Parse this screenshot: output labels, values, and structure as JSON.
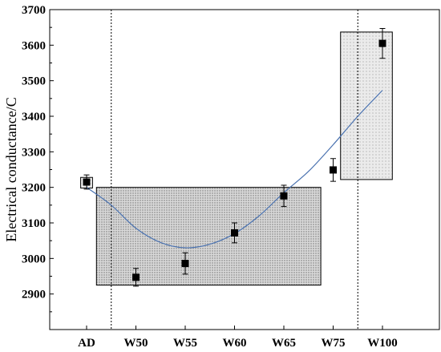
{
  "chart_data": {
    "type": "scatter",
    "title": "",
    "xlabel": "",
    "ylabel": "Electrical conductance/C",
    "categories": [
      "AD",
      "W50",
      "W55",
      "W60",
      "W65",
      "W75",
      "W100"
    ],
    "ylim": [
      2800,
      3700
    ],
    "yticks": [
      2900,
      3000,
      3100,
      3200,
      3300,
      3400,
      3500,
      3600,
      3700
    ],
    "grid": false,
    "series": [
      {
        "marker": "square",
        "color": "#000000",
        "values": [
          3215,
          2947,
          2986,
          3072,
          3176,
          3249,
          3605
        ],
        "errors": [
          20,
          25,
          30,
          28,
          30,
          32,
          42
        ]
      }
    ],
    "trend_curve": {
      "color": "#4a72b0",
      "x": [
        0,
        0.5,
        1,
        1.5,
        2,
        2.5,
        3,
        3.5,
        4,
        4.5,
        5,
        5.5,
        6
      ],
      "y": [
        3200,
        3150,
        3085,
        3045,
        3030,
        3040,
        3070,
        3120,
        3185,
        3245,
        3320,
        3400,
        3473
      ]
    },
    "shaded_regions": [
      {
        "x": [
          -0.12,
          0.12
        ],
        "y": [
          3198,
          3228
        ],
        "pattern": "light-dots"
      },
      {
        "x": [
          0.2,
          4.75
        ],
        "y": [
          2925,
          3200
        ],
        "pattern": "dense-dots"
      },
      {
        "x": [
          5.15,
          6.2
        ],
        "y": [
          3222,
          3637
        ],
        "pattern": "dots"
      }
    ],
    "vertical_dividers": [
      0.5,
      5.5
    ]
  }
}
